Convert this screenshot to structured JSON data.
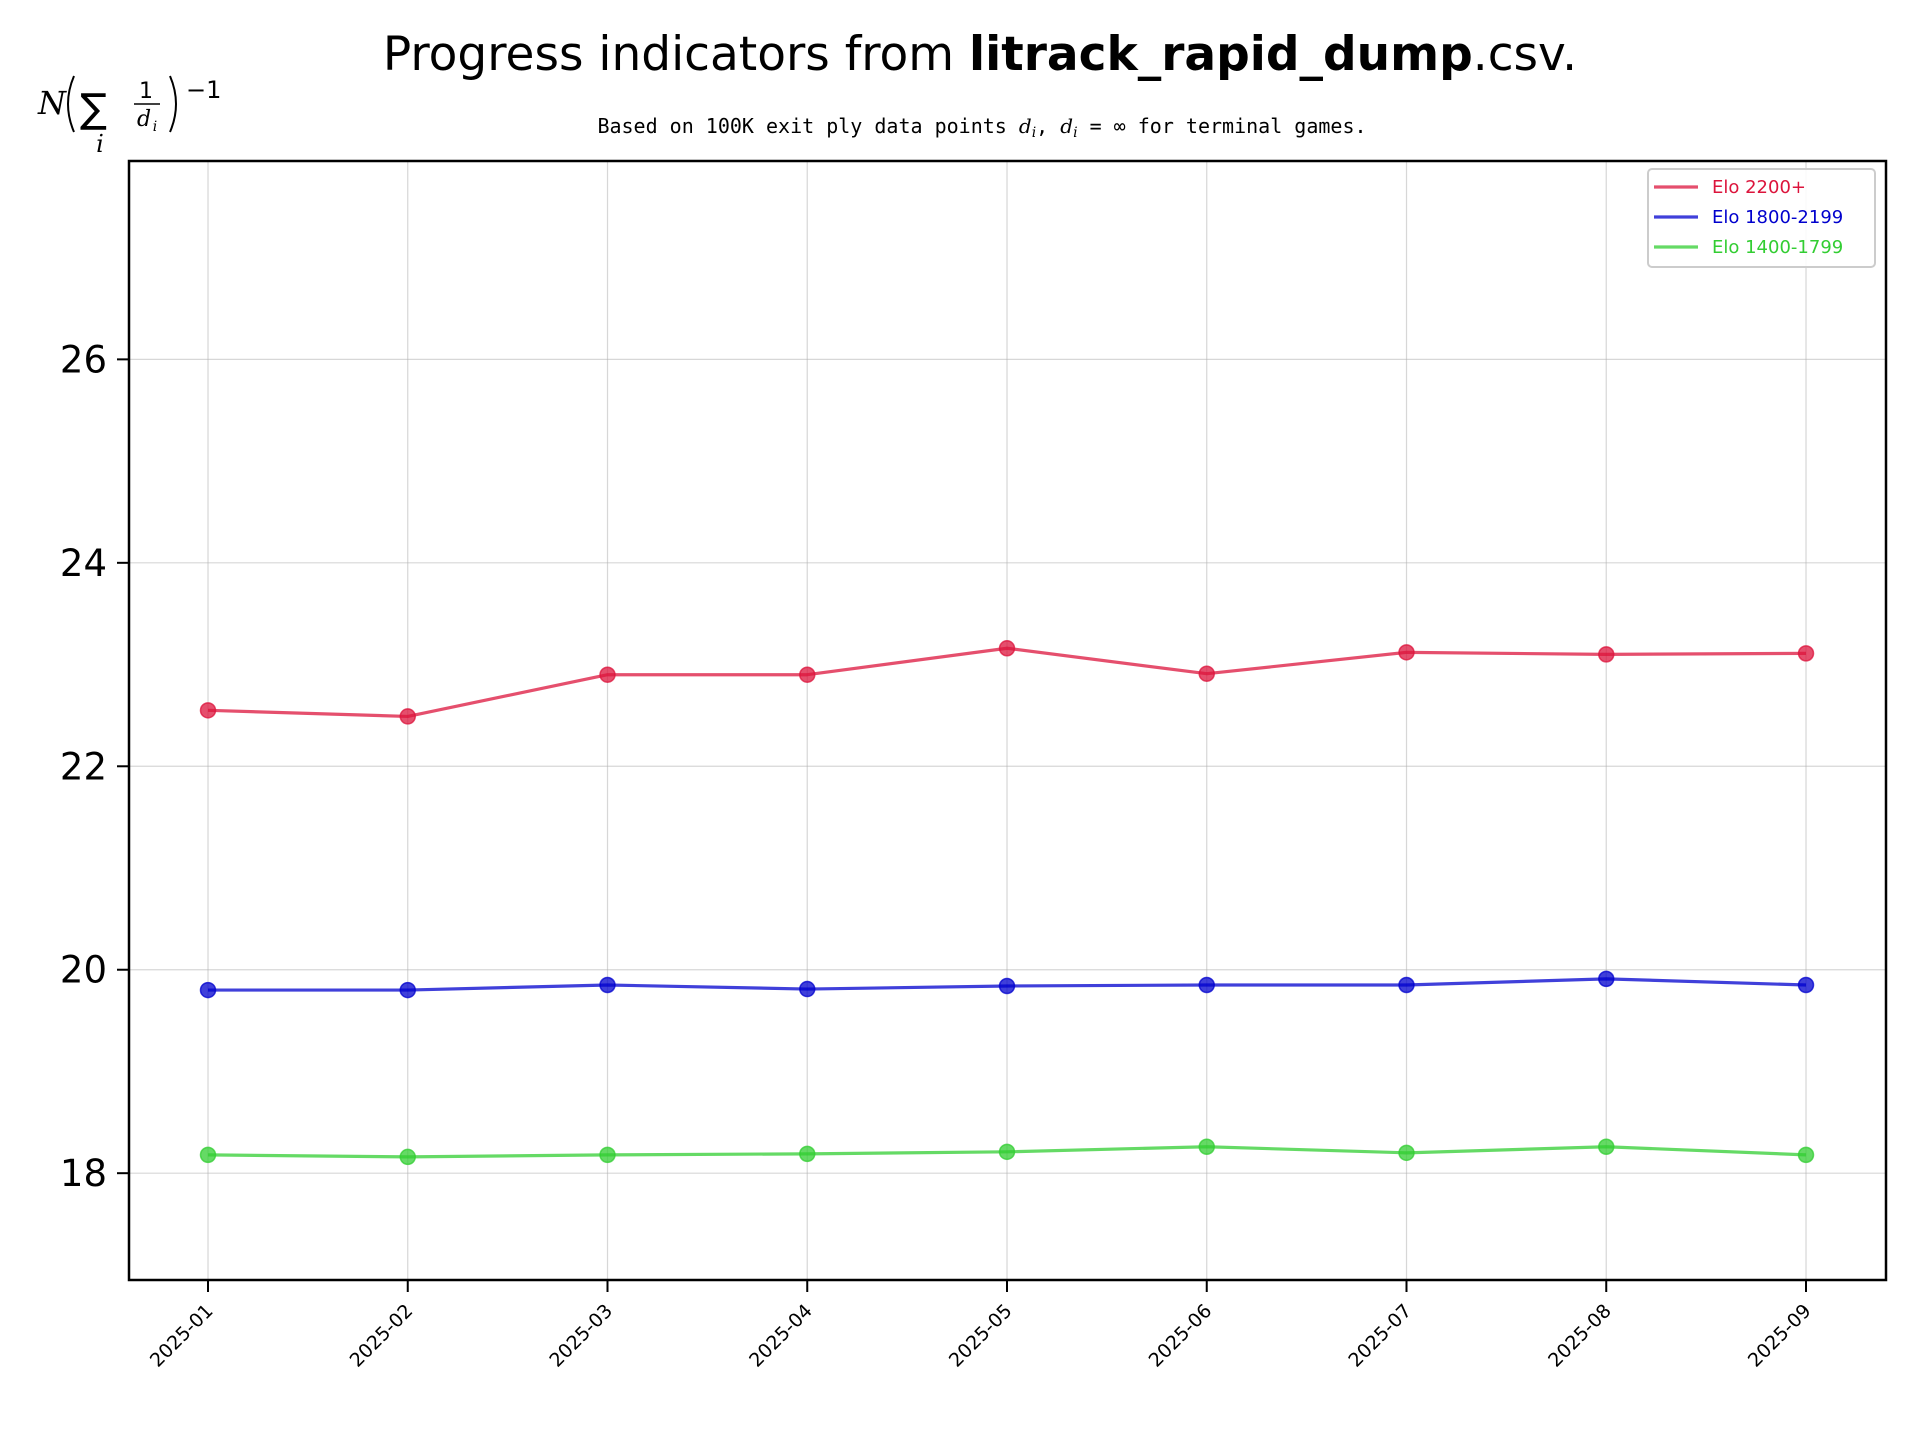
{
  "chart_data": {
    "type": "line",
    "title": {
      "prefix": "Progress indicators from ",
      "bold": "litrack_rapid_dump",
      "suffix": ".csv."
    },
    "subtitle": {
      "part1": "Based on 100K exit ply data points ",
      "var1": "d",
      "sub1": "i",
      "part2": ", ",
      "var2": "d",
      "sub2": "i",
      "part3": " = ∞ for terminal games."
    },
    "ylabel": {
      "n": "N",
      "sigma": "∑",
      "index": "i",
      "frac_num": "1",
      "frac_den": "d",
      "frac_den_sub": "i",
      "exponent": "−1"
    },
    "xlabel": "",
    "ylim": [
      16.95,
      27.95
    ],
    "yticks": [
      18,
      20,
      22,
      24,
      26
    ],
    "grid": true,
    "legend_position": "top-right",
    "categories": [
      "2025-01",
      "2025-02",
      "2025-03",
      "2025-04",
      "2025-05",
      "2025-06",
      "2025-07",
      "2025-08",
      "2025-09"
    ],
    "series": [
      {
        "name": "Elo 2200+",
        "color": "#dc143c",
        "values": [
          22.55,
          22.49,
          22.9,
          22.9,
          23.16,
          22.91,
          23.12,
          23.1,
          23.11
        ]
      },
      {
        "name": "Elo 1800-2199",
        "color": "#0000cd",
        "values": [
          19.8,
          19.8,
          19.85,
          19.81,
          19.84,
          19.85,
          19.85,
          19.91,
          19.85
        ]
      },
      {
        "name": "Elo 1400-1799",
        "color": "#32cd32",
        "values": [
          18.18,
          18.16,
          18.18,
          18.19,
          18.21,
          18.26,
          18.2,
          18.26,
          18.18
        ]
      }
    ]
  }
}
